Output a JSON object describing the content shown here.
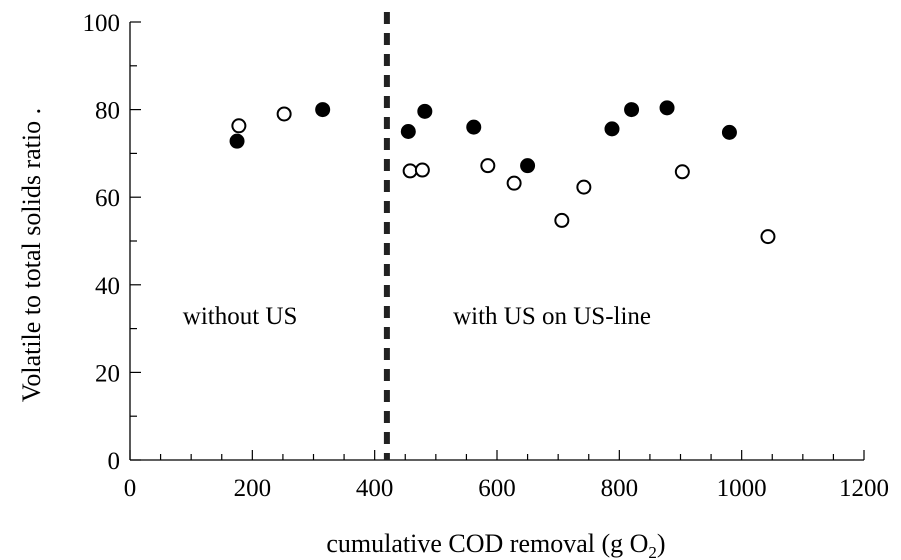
{
  "chart_data": {
    "type": "scatter",
    "xlabel": "cumulative COD removal (g O",
    "xlabel_sub": "2",
    "xlabel_end": ")",
    "ylabel": "Volatile to total solids ratio .",
    "xlim": [
      0,
      1200
    ],
    "ylim": [
      0,
      100
    ],
    "x_ticks": [
      "0",
      "200",
      "400",
      "600",
      "800",
      "1000",
      "1200"
    ],
    "y_ticks": [
      "0",
      "20",
      "40",
      "60",
      "80",
      "100"
    ],
    "x_tick_values": [
      0,
      200,
      400,
      600,
      800,
      1000,
      1200
    ],
    "y_tick_values": [
      0,
      20,
      40,
      60,
      80,
      100
    ],
    "x_minor_step": 50,
    "y_minor_step": 10,
    "grid": false,
    "divider_x": 420,
    "annotations": [
      {
        "text": "without US",
        "x": 180,
        "y": 31
      },
      {
        "text": "with US on US-line",
        "x": 690,
        "y": 31
      }
    ],
    "series": [
      {
        "marker": "filled-circle",
        "color": "#000000",
        "points": [
          [
            175,
            72.8
          ],
          [
            315,
            80.0
          ],
          [
            455,
            75.0
          ],
          [
            482,
            79.6
          ],
          [
            562,
            76.0
          ],
          [
            650,
            67.2
          ],
          [
            788,
            75.6
          ],
          [
            820,
            80.0
          ],
          [
            878,
            80.4
          ],
          [
            980,
            74.8
          ]
        ]
      },
      {
        "marker": "open-circle",
        "color": "#000000",
        "points": [
          [
            178,
            76.3
          ],
          [
            252,
            79.0
          ],
          [
            458,
            66.0
          ],
          [
            478,
            66.2
          ],
          [
            585,
            67.2
          ],
          [
            628,
            63.2
          ],
          [
            706,
            54.7
          ],
          [
            742,
            62.3
          ],
          [
            903,
            65.8
          ],
          [
            1043,
            51.0
          ]
        ]
      }
    ]
  }
}
